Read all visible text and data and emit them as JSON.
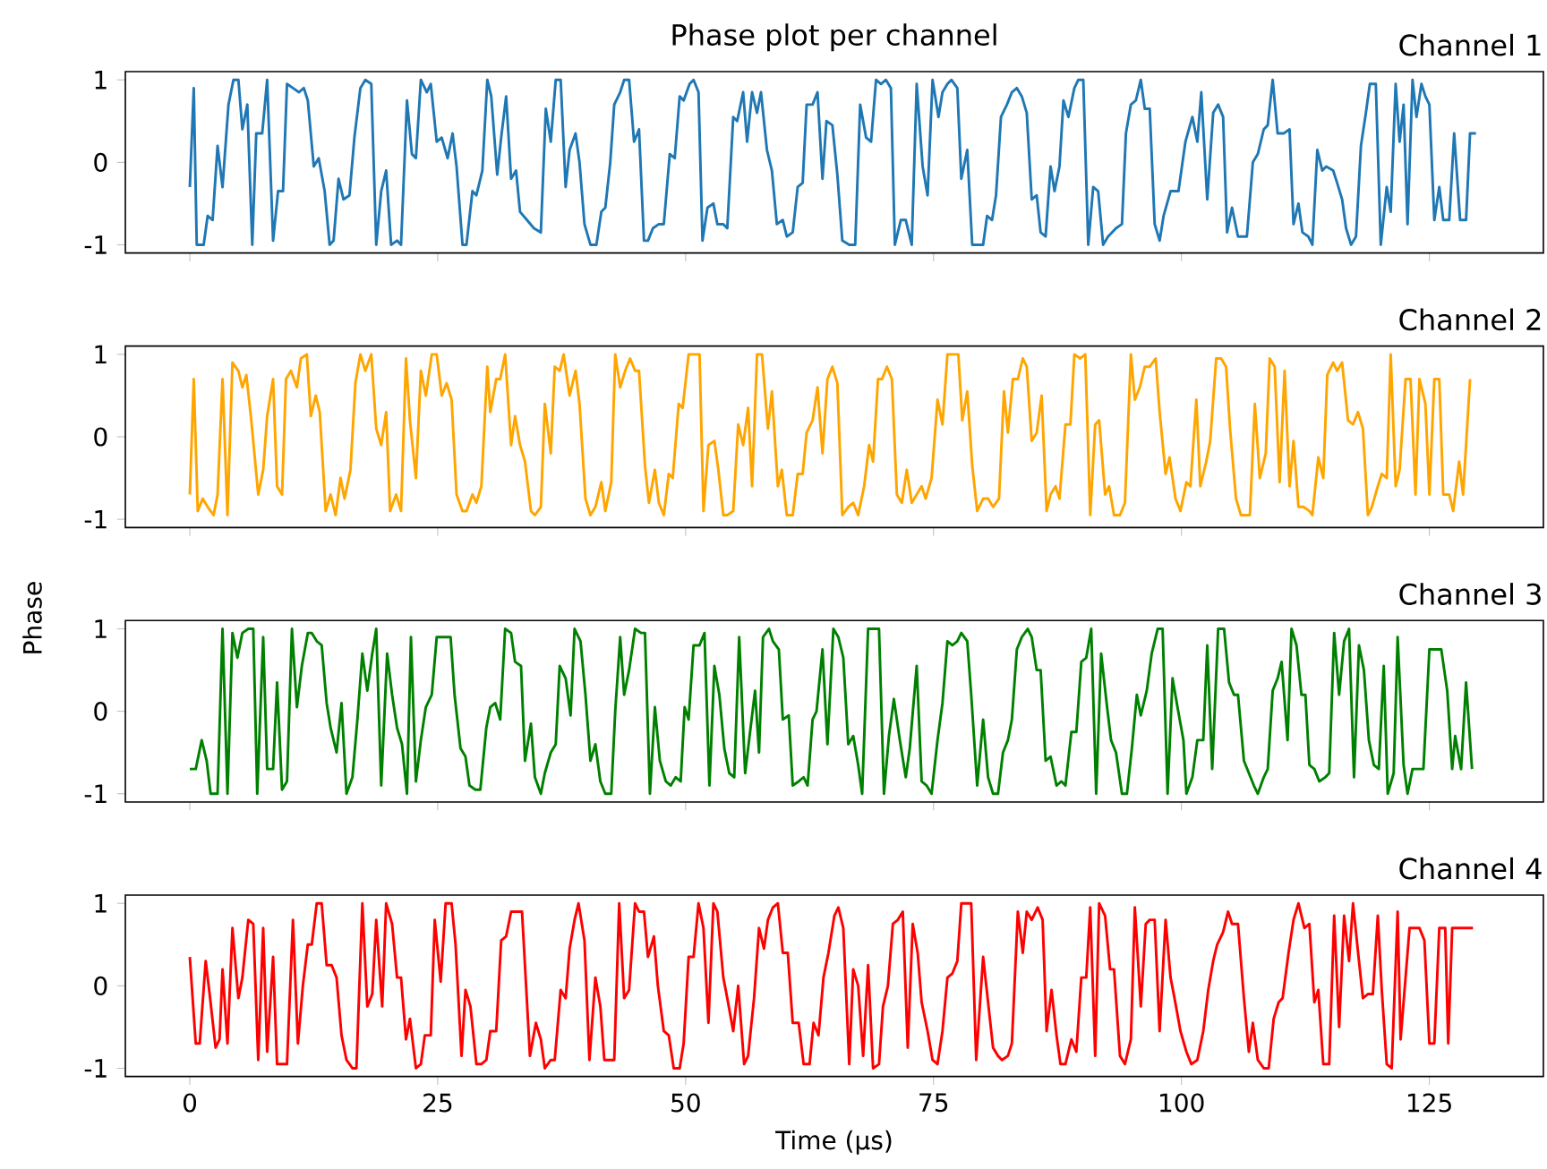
{
  "chart_data": [
    {
      "type": "line",
      "title": "Phase plot per channel",
      "subtitle": "Channel 1",
      "xlim": [
        -6.5,
        136.5
      ],
      "ylim": [
        -1.1,
        1.1
      ],
      "xticks": [
        0,
        25,
        50,
        75,
        100,
        125
      ],
      "yticks": [
        -1,
        0,
        1
      ],
      "tick_labels": "y",
      "series": [
        {
          "color": "#1f77b4",
          "x": [
            0,
            0.4,
            0.7,
            1.4,
            1.8,
            2.3,
            2.8,
            3.3,
            3.9,
            4.4,
            4.9,
            5.3,
            5.8,
            6.3,
            6.7,
            7.3,
            7.8,
            8.4,
            8.9,
            9.4,
            9.8,
            10.4,
            11,
            11.5,
            11.9,
            12.5,
            13,
            13.6,
            14.1,
            14.5,
            15,
            15.5,
            16.1,
            16.6,
            17.2,
            17.7,
            18.3,
            18.8,
            19.3,
            19.8,
            20.3,
            20.9,
            21.3,
            21.9,
            22.4,
            22.8,
            23.3,
            23.9,
            24.3,
            24.9,
            25.4,
            26,
            26.5,
            26.9,
            27.5,
            27.9,
            28.5,
            28.9,
            29.5,
            30,
            30.4,
            31,
            31.4,
            31.9,
            32.4,
            32.9,
            33.3,
            34,
            34.7,
            35.4,
            35.9,
            36.4,
            36.9,
            37.4,
            37.9,
            38.3,
            38.9,
            39.3,
            39.8,
            40.4,
            41,
            41.5,
            41.9,
            42.4,
            42.8,
            43.4,
            43.8,
            44.3,
            44.8,
            45.3,
            45.8,
            46.2,
            46.7,
            47.3,
            47.8,
            48.4,
            48.9,
            49.4,
            49.8,
            50.4,
            50.8,
            51.3,
            51.7,
            52.2,
            52.8,
            53.2,
            53.8,
            54.2,
            54.8,
            55.2,
            55.8,
            56.2,
            56.7,
            57.2,
            57.6,
            58.2,
            58.7,
            59.2,
            59.8,
            60.2,
            60.8,
            61.3,
            61.8,
            62.2,
            62.8,
            63.3,
            63.8,
            64.2,
            64.8,
            65.3,
            65.8,
            66.5,
            67.1,
            67.6,
            68.2,
            68.7,
            69.2,
            69.7,
            70.2,
            70.7,
            71.1,
            71.7,
            72.2,
            72.8,
            73.3,
            73.9,
            74.4,
            74.9,
            75.5,
            75.9,
            76.4,
            76.8,
            77.4,
            77.8,
            78.4,
            78.9,
            79.5,
            80,
            80.4,
            80.9,
            81.3,
            81.8,
            82.4,
            82.9,
            83.4,
            83.9,
            84.4,
            84.9,
            85.4,
            85.8,
            86.3,
            86.8,
            87.2,
            87.7,
            88.1,
            88.6,
            89.2,
            89.6,
            90.1,
            90.6,
            91.1,
            91.6,
            92.1,
            92.6,
            93.4,
            94,
            94.4,
            94.9,
            95.4,
            95.9,
            96.3,
            96.8,
            97.3,
            97.8,
            98.2,
            98.9,
            99.3,
            99.7,
            100.4,
            101.1,
            101.6,
            102,
            102.6,
            103.2,
            103.7,
            104.2,
            104.6,
            105.1,
            105.7,
            106.2,
            106.6,
            107.2,
            107.7,
            108.3,
            108.7,
            109.2,
            109.7,
            110.3,
            110.9,
            111.3,
            111.8,
            112.2,
            112.8,
            113.2,
            113.7,
            114.2,
            114.6,
            115.3,
            115.7,
            116.2,
            116.6,
            117.1,
            117.6,
            118.1,
            118.6,
            119,
            119.6,
            120.1,
            120.7,
            121.1,
            121.6,
            122,
            122.4,
            122.8,
            123.3,
            123.7,
            124.2,
            124.6,
            125,
            125.5,
            126,
            126.4,
            127,
            127.5,
            128.1,
            128.7,
            129.1,
            129.7
          ],
          "values": [
            -0.3,
            0.9,
            -1,
            -1,
            -0.65,
            -0.7,
            0.2,
            -0.3,
            0.7,
            1,
            1,
            0.4,
            0.7,
            -1,
            0.35,
            0.35,
            1,
            -0.95,
            -0.35,
            -0.35,
            0.95,
            0.9,
            0.85,
            0.9,
            0.75,
            -0.05,
            0.05,
            -0.35,
            -1,
            -0.95,
            -0.2,
            -0.45,
            -0.4,
            0.3,
            0.9,
            1,
            0.95,
            -1,
            -0.35,
            -0.1,
            -1,
            -0.95,
            -1,
            0.75,
            0.1,
            0.05,
            1,
            0.85,
            0.95,
            0.25,
            0.3,
            0.05,
            0.35,
            -0.05,
            -1,
            -1,
            -0.35,
            -0.4,
            -0.1,
            1,
            0.8,
            -0.15,
            0.3,
            0.8,
            -0.2,
            -0.1,
            -0.6,
            -0.7,
            -0.8,
            -0.85,
            0.65,
            0.25,
            1,
            1,
            -0.3,
            0.15,
            0.35,
            0,
            -0.75,
            -1,
            -1,
            -0.6,
            -0.55,
            0,
            0.7,
            0.85,
            1,
            1,
            0.25,
            0.4,
            -0.95,
            -0.95,
            -0.8,
            -0.75,
            -0.75,
            0.1,
            0.05,
            0.8,
            0.75,
            0.95,
            1,
            0.85,
            -0.95,
            -0.55,
            -0.5,
            -0.75,
            -0.75,
            -0.8,
            0.55,
            0.5,
            0.85,
            0.25,
            0.85,
            0.6,
            0.85,
            0.15,
            -0.1,
            -0.75,
            -0.7,
            -0.9,
            -0.85,
            -0.3,
            -0.25,
            0.7,
            0.7,
            0.85,
            -0.2,
            0.5,
            0.45,
            -0.15,
            -0.95,
            -1,
            -1,
            0.7,
            0.3,
            0.25,
            1,
            0.95,
            1,
            0.9,
            -1,
            -0.7,
            -0.7,
            -1,
            0.95,
            -0.05,
            -0.4,
            1,
            0.55,
            0.85,
            0.95,
            1,
            0.9,
            -0.2,
            0.15,
            -1,
            -1,
            -1,
            -0.65,
            -0.7,
            -0.4,
            0.55,
            0.7,
            0.85,
            0.9,
            0.8,
            0.6,
            -0.45,
            -0.4,
            -0.85,
            -0.9,
            -0.05,
            -0.35,
            -0.05,
            0.75,
            0.55,
            0.9,
            1,
            1,
            -1,
            -0.3,
            -0.35,
            -1,
            -0.9,
            -0.8,
            -0.75,
            0.35,
            0.7,
            0.75,
            1,
            0.65,
            0.65,
            -0.75,
            -0.95,
            -0.65,
            -0.35,
            -0.35,
            -0.35,
            0.25,
            0.55,
            0.25,
            0.85,
            -0.45,
            0.6,
            0.7,
            0.55,
            -0.85,
            -0.55,
            -0.9,
            -0.9,
            -0.9,
            0,
            0.1,
            0.4,
            0.45,
            1,
            0.35,
            0.35,
            0.4,
            -0.75,
            -0.5,
            -0.85,
            -0.9,
            -1,
            0.15,
            -0.1,
            -0.05,
            -0.1,
            -0.25,
            -0.45,
            -0.8,
            -1,
            -0.9,
            0.2,
            0.6,
            0.95,
            0.95,
            -1,
            -0.3,
            -0.6,
            0.95,
            0.25,
            0.7,
            -0.75,
            1,
            0.55,
            0.95,
            0.8,
            0.7,
            -0.7,
            -0.3,
            -0.7,
            -0.7,
            0.35,
            -0.7,
            -0.7,
            0.35,
            0.35
          ]
        }
      ]
    },
    {
      "type": "line",
      "subtitle": "Channel 2",
      "ylabel": "Phase",
      "xlim": [
        -6.5,
        136.5
      ],
      "ylim": [
        -1.1,
        1.1
      ],
      "xticks": [
        0,
        25,
        50,
        75,
        100,
        125
      ],
      "yticks": [
        -1,
        0,
        1
      ],
      "tick_labels": "y",
      "series": [
        {
          "color": "#ffa500",
          "x": [
            0,
            0.4,
            0.8,
            1.3,
            1.8,
            2.4,
            2.8,
            3.3,
            3.8,
            4.3,
            4.9,
            5.3,
            5.7,
            6.2,
            6.9,
            7.4,
            7.8,
            8.4,
            8.8,
            9.3,
            9.7,
            10.2,
            10.8,
            11.2,
            11.8,
            12.2,
            12.7,
            13.1,
            13.7,
            14.2,
            14.7,
            15.2,
            15.6,
            16.2,
            16.7,
            17.2,
            17.7,
            18.3,
            18.8,
            19.3,
            19.8,
            20.2,
            20.8,
            21.3,
            21.8,
            22.2,
            22.8,
            23.3,
            23.8,
            24.4,
            24.9,
            25.4,
            25.9,
            26.4,
            26.9,
            27.5,
            27.9,
            28.5,
            28.9,
            29.4,
            30,
            30.3,
            30.9,
            31.3,
            31.8,
            32.4,
            32.8,
            33.3,
            33.8,
            34.4,
            34.8,
            35.4,
            35.8,
            36.4,
            36.8,
            37.3,
            37.7,
            38.3,
            38.9,
            39.3,
            39.9,
            40.4,
            40.9,
            41.5,
            41.9,
            42.5,
            42.9,
            43.4,
            43.9,
            44.4,
            44.9,
            45.3,
            45.9,
            46.3,
            46.9,
            47.3,
            47.8,
            48.3,
            48.7,
            49.3,
            49.7,
            50.3,
            50.8,
            51.4,
            51.8,
            52.3,
            52.9,
            53.3,
            53.8,
            54.2,
            54.8,
            55.3,
            55.8,
            56.3,
            56.7,
            57.2,
            57.7,
            58.3,
            58.7,
            59.3,
            59.7,
            60.2,
            60.8,
            61.3,
            61.8,
            62.2,
            62.8,
            63.3,
            63.8,
            64.3,
            64.8,
            65.3,
            65.8,
            66.4,
            66.9,
            67.4,
            68,
            68.5,
            68.9,
            69.4,
            69.8,
            70.3,
            70.8,
            71.3,
            71.8,
            72.3,
            72.8,
            73.3,
            73.8,
            74.2,
            74.8,
            75.4,
            75.9,
            76.4,
            76.9,
            77.5,
            77.9,
            78.4,
            78.9,
            79.4,
            80,
            80.5,
            81,
            81.6,
            82.1,
            82.5,
            83,
            83.5,
            84,
            84.4,
            84.9,
            85.4,
            85.9,
            86.4,
            86.8,
            87.3,
            87.7,
            88.3,
            88.8,
            89.2,
            89.8,
            90.3,
            90.8,
            91.3,
            91.7,
            92.3,
            92.7,
            93.2,
            93.8,
            94.3,
            94.9,
            95.3,
            95.8,
            96.3,
            96.8,
            97.4,
            97.8,
            98.4,
            98.8,
            99.4,
            99.9,
            100.5,
            100.9,
            101.5,
            101.9,
            102.5,
            102.9,
            103.5,
            104,
            104.5,
            104.9,
            105.5,
            106,
            106.5,
            106.9,
            107.4,
            107.9,
            108.5,
            108.9,
            109.4,
            109.9,
            110.4,
            110.9,
            111.3,
            111.8,
            112.3,
            112.9,
            113.2,
            113.8,
            114.3,
            114.7,
            115.3,
            115.7,
            116.2,
            116.8,
            117.3,
            117.8,
            118.3,
            118.8,
            119.2,
            119.8,
            120.2,
            120.7,
            121.1,
            121.6,
            122,
            122.6,
            123.1,
            123.6,
            124,
            124.6,
            125,
            125.5,
            126,
            126.4,
            127,
            127.4,
            128,
            128.4,
            129.1
          ],
          "values": [
            -0.7,
            0.7,
            -0.9,
            -0.75,
            -0.85,
            -0.95,
            -0.7,
            0.7,
            -0.95,
            0.9,
            0.8,
            0.6,
            0.75,
            0.2,
            -0.7,
            -0.4,
            0.25,
            0.7,
            -0.6,
            -0.7,
            0.7,
            0.8,
            0.6,
            0.95,
            1,
            0.25,
            0.5,
            0.3,
            -0.9,
            -0.7,
            -0.95,
            -0.5,
            -0.75,
            -0.4,
            0.65,
            1,
            0.8,
            1,
            0.1,
            -0.1,
            0.3,
            -0.9,
            -0.7,
            -0.9,
            0.95,
            0.2,
            -0.5,
            0.8,
            0.5,
            1,
            1,
            0.5,
            0.65,
            0.45,
            -0.7,
            -0.9,
            -0.9,
            -0.7,
            -0.8,
            -0.6,
            0.85,
            0.3,
            0.7,
            0.7,
            1,
            -0.1,
            0.25,
            -0.1,
            -0.3,
            -0.9,
            -0.95,
            -0.85,
            0.4,
            -0.2,
            0.85,
            0.8,
            1,
            0.5,
            0.8,
            0.4,
            -0.75,
            -0.95,
            -0.85,
            -0.55,
            -0.9,
            -0.55,
            1,
            0.6,
            0.8,
            0.95,
            0.8,
            0.8,
            -0.35,
            -0.8,
            -0.4,
            -0.8,
            -0.95,
            -0.45,
            -0.5,
            0.4,
            0.35,
            1,
            1,
            1,
            -0.9,
            -0.1,
            -0.05,
            -0.4,
            -0.95,
            -0.95,
            -0.9,
            0.15,
            -0.1,
            0.35,
            -0.6,
            1,
            1,
            0.1,
            0.55,
            -0.6,
            -0.4,
            -0.95,
            -0.95,
            -0.45,
            -0.45,
            0.05,
            0.2,
            0.6,
            -0.2,
            0.7,
            0.85,
            0.65,
            -0.95,
            -0.85,
            -0.8,
            -0.95,
            -0.6,
            -0.1,
            -0.3,
            0.7,
            0.7,
            0.85,
            0.7,
            -0.7,
            -0.8,
            -0.4,
            -0.8,
            -0.7,
            -0.6,
            -0.75,
            -0.5,
            0.45,
            0.15,
            1,
            1,
            1,
            0.2,
            0.55,
            -0.35,
            -0.9,
            -0.75,
            -0.75,
            -0.85,
            -0.75,
            0.55,
            0.05,
            0.7,
            0.7,
            0.95,
            0.85,
            -0.05,
            0.05,
            0.5,
            -0.9,
            -0.7,
            -0.6,
            -0.75,
            0.15,
            0.15,
            1,
            0.95,
            1,
            -0.95,
            0.15,
            0.2,
            -0.7,
            -0.6,
            -0.95,
            -0.95,
            -0.8,
            1,
            0.45,
            0.6,
            0.85,
            0.85,
            0.95,
            0.3,
            -0.45,
            -0.25,
            -0.75,
            -0.9,
            -0.55,
            -0.6,
            0.45,
            -0.6,
            -0.3,
            -0.05,
            0.95,
            0.95,
            0.85,
            0.1,
            -0.75,
            -0.95,
            -0.95,
            -0.95,
            0.4,
            -0.5,
            -0.2,
            0.95,
            0.85,
            -0.55,
            0.8,
            -0.6,
            -0.05,
            -0.85,
            -0.85,
            -0.9,
            -0.95,
            -0.25,
            -0.5,
            0.75,
            0.9,
            0.8,
            0.9,
            0.2,
            0.15,
            0.3,
            0.1,
            -0.95,
            -0.85,
            -0.6,
            -0.45,
            -0.5,
            1,
            -0.6,
            -0.4,
            0.7,
            0.7,
            -0.7,
            0.7,
            0.4,
            -0.7,
            0.7,
            0.7,
            -0.7,
            -0.7,
            -0.9,
            -0.3,
            -0.7,
            0.7
          ]
        }
      ]
    },
    {
      "type": "line",
      "subtitle": "Channel 3",
      "xlim": [
        -6.5,
        136.5
      ],
      "ylim": [
        -1.1,
        1.1
      ],
      "xticks": [
        0,
        25,
        50,
        75,
        100,
        125
      ],
      "yticks": [
        -1,
        0,
        1
      ],
      "tick_labels": "y",
      "series": [
        {
          "color": "#008000",
          "x": [
            0,
            0.6,
            1.2,
            1.7,
            2.1,
            2.8,
            3.3,
            3.8,
            4.3,
            4.8,
            5.3,
            5.9,
            6.4,
            6.8,
            7.4,
            7.8,
            8.4,
            8.8,
            9.3,
            9.8,
            10.3,
            10.8,
            11.3,
            11.9,
            12.3,
            12.8,
            13.3,
            13.8,
            14.2,
            14.8,
            15.3,
            15.8,
            16.4,
            16.9,
            17.4,
            17.9,
            18.4,
            18.8,
            19.3,
            19.9,
            20.4,
            20.9,
            21.4,
            21.9,
            22.3,
            22.8,
            23.3,
            23.8,
            24.4,
            24.9,
            25.4,
            25.8,
            26.3,
            26.7,
            27.3,
            27.8,
            28.2,
            28.8,
            29.3,
            29.9,
            30.3,
            30.8,
            31.3,
            31.8,
            32.4,
            32.8,
            33.4,
            33.8,
            34.4,
            34.8,
            35.4,
            35.8,
            36.4,
            36.9,
            37.3,
            37.9,
            38.4,
            38.8,
            39.4,
            39.9,
            40.4,
            40.9,
            41.4,
            41.9,
            42.5,
            42.9,
            43.4,
            43.8,
            44.3,
            44.9,
            45.5,
            45.9,
            46.4,
            46.9,
            47.4,
            48,
            48.5,
            49,
            49.5,
            49.9,
            50.3,
            50.8,
            51.4,
            51.9,
            52.4,
            52.9,
            53.4,
            53.9,
            54.4,
            54.9,
            55.4,
            56,
            56.4,
            57,
            57.4,
            57.8,
            58.4,
            58.8,
            59.4,
            59.8,
            60.4,
            60.8,
            61.4,
            61.9,
            62.3,
            62.8,
            63.2,
            63.8,
            64.3,
            64.9,
            65.4,
            65.9,
            66.4,
            66.9,
            67.4,
            67.8,
            68.4,
            68.9,
            69.5,
            70,
            70.5,
            71,
            71.6,
            72.2,
            72.6,
            73.3,
            73.8,
            74.3,
            74.8,
            75.4,
            75.9,
            76.4,
            76.9,
            77.4,
            77.8,
            78.4,
            78.8,
            79.4,
            80,
            80.5,
            81,
            81.5,
            82,
            82.5,
            82.9,
            83.4,
            83.9,
            84.5,
            84.9,
            85.4,
            85.8,
            86.3,
            86.8,
            87.4,
            87.9,
            88.3,
            88.9,
            89.4,
            89.9,
            90.4,
            90.9,
            91.4,
            91.9,
            92.5,
            92.9,
            93.4,
            94,
            94.5,
            95,
            95.5,
            95.9,
            96.5,
            97,
            97.6,
            98.1,
            98.6,
            99.1,
            99.6,
            100.2,
            100.5,
            101.1,
            101.6,
            102.2,
            102.6,
            103.1,
            103.7,
            104.3,
            104.8,
            105.3,
            105.7,
            106.3,
            106.8,
            107.3,
            107.7,
            108.3,
            108.7,
            109.2,
            109.7,
            110.1,
            110.7,
            111.1,
            111.6,
            112.1,
            112.5,
            112.9,
            113.4,
            113.9,
            114.5,
            114.9,
            115.4,
            115.9,
            116.4,
            116.9,
            117.4,
            117.9,
            118.4,
            118.9,
            119.4,
            119.9,
            120.4,
            120.8,
            121.4,
            121.8,
            122.4,
            122.8,
            123.3,
            123.9,
            124.4,
            125,
            125.5,
            126.2,
            126.8,
            127.3,
            127.6,
            128.2,
            128.7,
            129.3
          ],
          "values": [
            -0.7,
            -0.7,
            -0.35,
            -0.6,
            -1,
            -1,
            1,
            -1,
            0.95,
            0.65,
            0.95,
            1,
            1,
            -1,
            0.9,
            -0.7,
            -0.7,
            0.35,
            -0.95,
            -0.85,
            1,
            0.05,
            0.55,
            0.95,
            0.95,
            0.85,
            0.8,
            0.1,
            -0.2,
            -0.5,
            0.1,
            -1,
            -0.8,
            -0.1,
            0.7,
            0.25,
            0.7,
            1,
            -0.9,
            0.7,
            0.2,
            -0.2,
            -0.4,
            -1,
            0.9,
            -0.85,
            -0.35,
            0.05,
            0.2,
            0.9,
            0.9,
            0.9,
            0.9,
            0.2,
            -0.45,
            -0.55,
            -0.9,
            -0.95,
            -0.95,
            -0.2,
            0.05,
            0.1,
            -0.1,
            1,
            0.95,
            0.6,
            0.55,
            -0.6,
            -0.15,
            -0.8,
            -1,
            -0.75,
            -0.5,
            -0.4,
            0.55,
            0.4,
            -0.05,
            1,
            0.85,
            0.2,
            -0.6,
            -0.4,
            -0.85,
            -1,
            -1,
            0,
            0.9,
            0.2,
            0.5,
            1,
            0.95,
            0.95,
            -1,
            0.05,
            -0.6,
            -0.85,
            -0.9,
            -0.8,
            -0.85,
            0.05,
            -0.1,
            0.8,
            0.8,
            0.95,
            -0.9,
            0.55,
            0.2,
            -0.45,
            -0.75,
            -0.8,
            0.9,
            -0.75,
            -0.35,
            0.25,
            -0.5,
            0.9,
            1,
            0.85,
            0.75,
            -0.1,
            -0.05,
            -0.9,
            -0.85,
            -0.8,
            -0.9,
            -0.1,
            0,
            0.75,
            -0.4,
            1,
            0.9,
            0.65,
            -0.4,
            -0.3,
            -0.65,
            -1,
            1,
            1,
            1,
            -1,
            -0.3,
            0.15,
            -0.35,
            -0.8,
            -0.45,
            0.55,
            -0.85,
            -0.9,
            -1,
            -0.35,
            0.1,
            0.85,
            0.8,
            0.85,
            0.95,
            0.85,
            0.2,
            -0.9,
            -0.1,
            -0.8,
            -1,
            -1,
            -0.5,
            -0.35,
            -0.1,
            0.75,
            0.9,
            1,
            0.9,
            0.5,
            0.5,
            -0.6,
            -0.55,
            -0.9,
            -0.85,
            -0.9,
            -0.25,
            -0.25,
            0.6,
            0.65,
            1,
            -1,
            0.7,
            0.05,
            -0.35,
            -0.5,
            -1,
            -1,
            -0.45,
            0.2,
            -0.05,
            0.25,
            0.7,
            1,
            1,
            -1,
            0.4,
            0.05,
            -0.35,
            -1,
            -0.8,
            -0.35,
            -0.35,
            0.8,
            -0.7,
            1,
            1,
            0.35,
            0.2,
            0.2,
            -0.6,
            -0.75,
            -0.9,
            -1,
            -0.8,
            -0.7,
            0.25,
            0.4,
            0.6,
            -0.35,
            1,
            0.8,
            0.2,
            0.2,
            -0.65,
            -0.7,
            -0.85,
            -0.8,
            -0.75,
            0.95,
            0.2,
            0.85,
            1,
            -0.8,
            0.8,
            0.5,
            -0.35,
            -0.65,
            -0.7,
            0.55,
            -1,
            -0.75,
            0.9,
            -0.65,
            -1,
            -0.7,
            -0.7,
            -0.7,
            0.75,
            0.75,
            0.75,
            0.25,
            -0.7,
            -0.3,
            -0.7,
            0.35,
            -0.7
          ]
        }
      ]
    },
    {
      "type": "line",
      "subtitle": "Channel 4",
      "xlabel": "Time (µs)",
      "xlim": [
        -6.5,
        136.5
      ],
      "ylim": [
        -1.1,
        1.1
      ],
      "xticks": [
        0,
        25,
        50,
        75,
        100,
        125
      ],
      "yticks": [
        -1,
        0,
        1
      ],
      "series": [
        {
          "color": "#ff0000",
          "x": [
            0,
            0.6,
            1,
            1.6,
            2,
            2.6,
            3,
            3.3,
            3.8,
            4.3,
            4.9,
            5.3,
            5.9,
            6.4,
            6.9,
            7.4,
            7.8,
            8.4,
            8.8,
            9.4,
            9.8,
            10.4,
            10.9,
            11.4,
            11.9,
            12.3,
            12.8,
            13.3,
            13.8,
            14.3,
            14.8,
            15.3,
            15.8,
            16.4,
            16.8,
            17.4,
            17.9,
            18.4,
            18.8,
            19.4,
            19.8,
            20.4,
            20.9,
            21.3,
            21.8,
            22.2,
            22.8,
            23.3,
            23.7,
            24.3,
            24.7,
            25.3,
            25.8,
            26.4,
            26.8,
            27.4,
            27.8,
            28.3,
            28.9,
            29.4,
            29.9,
            30.3,
            30.9,
            31.4,
            31.9,
            32.4,
            33,
            33.5,
            34.3,
            34.9,
            35.4,
            35.8,
            36.4,
            36.8,
            37.4,
            37.9,
            38.3,
            38.8,
            39.2,
            39.8,
            40.3,
            40.9,
            41.4,
            41.8,
            42.3,
            42.8,
            43.3,
            43.8,
            44.3,
            44.9,
            45.3,
            45.8,
            46.2,
            46.8,
            47.2,
            47.8,
            48.3,
            48.8,
            49.4,
            49.8,
            50.3,
            50.8,
            51.3,
            51.8,
            52.3,
            52.8,
            53.2,
            53.8,
            54.2,
            54.8,
            55.3,
            55.9,
            56.3,
            56.9,
            57.4,
            57.9,
            58.3,
            58.8,
            59.3,
            59.8,
            60.3,
            60.8,
            61.4,
            61.9,
            62.5,
            62.9,
            63.4,
            63.9,
            64.4,
            65,
            65.4,
            65.9,
            66.5,
            66.9,
            67.4,
            67.9,
            68.4,
            68.9,
            69.5,
            69.9,
            70.4,
            70.9,
            71.4,
            71.9,
            72.4,
            72.9,
            73.4,
            73.8,
            74.4,
            74.9,
            75.4,
            75.9,
            76.4,
            76.9,
            77.4,
            77.8,
            78.4,
            78.8,
            79.3,
            80,
            80.5,
            81,
            81.5,
            81.9,
            82.5,
            82.9,
            83.5,
            84,
            84.4,
            84.9,
            85.5,
            86,
            86.4,
            86.9,
            87.4,
            87.8,
            88.3,
            88.9,
            89.4,
            89.9,
            90.4,
            90.8,
            91.3,
            91.7,
            92.3,
            92.8,
            93.2,
            93.8,
            94.3,
            94.9,
            95.3,
            95.9,
            96.4,
            96.8,
            97.3,
            97.8,
            98.4,
            98.9,
            99.3,
            99.9,
            100.5,
            101,
            101.6,
            102.2,
            102.7,
            103.2,
            103.6,
            104.2,
            104.7,
            105.1,
            105.7,
            106.3,
            106.8,
            107.2,
            107.7,
            108.3,
            108.8,
            109.3,
            109.8,
            110.2,
            110.8,
            111.3,
            111.8,
            112.4,
            112.9,
            113.4,
            113.8,
            114.3,
            114.9,
            115.4,
            115.9,
            116.4,
            116.9,
            117.3,
            117.9,
            118.3,
            118.8,
            119.3,
            119.8,
            120.2,
            120.7,
            121.2,
            121.8,
            122.1,
            122.6,
            123,
            123.5,
            124,
            124.5,
            125,
            125.5,
            126,
            126.6,
            126.9,
            127.3,
            127.9,
            128.5,
            129.4
          ],
          "values": [
            0.35,
            -0.7,
            -0.7,
            0.3,
            -0.1,
            -0.75,
            -0.65,
            0.2,
            -0.7,
            0.7,
            -0.15,
            0.1,
            0.8,
            0.75,
            -0.9,
            0.7,
            -0.8,
            0.35,
            -0.95,
            -0.95,
            -0.95,
            0.8,
            -0.7,
            0,
            0.5,
            0.5,
            1,
            1,
            0.25,
            0.25,
            0.1,
            -0.6,
            -0.9,
            -1,
            -1,
            1,
            -0.25,
            -0.1,
            0.8,
            -0.25,
            1,
            0.75,
            0.1,
            0.1,
            -0.65,
            -0.4,
            -1,
            -0.95,
            -0.6,
            -0.6,
            0.8,
            0.05,
            1,
            1,
            0.5,
            -0.85,
            -0.05,
            -0.25,
            -0.95,
            -0.95,
            -0.9,
            -0.55,
            -0.55,
            0.55,
            0.6,
            0.9,
            0.9,
            0.9,
            -0.85,
            -0.45,
            -0.65,
            -1,
            -0.9,
            -0.9,
            -0.05,
            -0.15,
            0.45,
            0.8,
            1,
            0.55,
            -0.9,
            0.1,
            -0.25,
            -0.9,
            -0.9,
            -0.9,
            1,
            -0.15,
            -0.05,
            1,
            0.9,
            0.9,
            0.35,
            0.6,
            0,
            -0.55,
            -0.6,
            -1,
            -1,
            -0.7,
            0.35,
            0.35,
            1,
            0.7,
            -0.45,
            1,
            0.9,
            0.1,
            -0.15,
            -0.55,
            0,
            -0.95,
            -0.85,
            -0.15,
            0.7,
            0.45,
            0.8,
            0.95,
            1,
            0.4,
            0.4,
            -0.45,
            -0.45,
            -0.95,
            -0.95,
            -0.45,
            -0.6,
            0.1,
            0.4,
            0.85,
            0.95,
            0.7,
            -0.95,
            0.2,
            0,
            -0.85,
            0.25,
            -1,
            -0.95,
            -0.25,
            0,
            0.75,
            0.8,
            0.9,
            -0.75,
            0.75,
            0.4,
            -0.2,
            -0.55,
            -0.9,
            -0.95,
            -0.55,
            0.1,
            0.15,
            0.3,
            1,
            1,
            1,
            -0.9,
            0.35,
            -0.2,
            -0.75,
            -0.85,
            -0.9,
            -0.85,
            -0.7,
            0.9,
            0.4,
            0.9,
            0.8,
            0.95,
            0.8,
            -0.55,
            -0.05,
            -0.6,
            -0.95,
            -0.95,
            -0.65,
            -0.8,
            0.1,
            0.1,
            0.95,
            -0.85,
            1,
            0.85,
            0.2,
            0.2,
            -0.85,
            -0.95,
            -0.65,
            0.95,
            -0.25,
            0.75,
            0.8,
            0.8,
            -0.55,
            0.8,
            0.1,
            -0.15,
            -0.55,
            -0.8,
            -0.95,
            -0.9,
            -0.55,
            -0.05,
            0.3,
            0.5,
            0.65,
            0.9,
            0.75,
            0.75,
            -0.15,
            -0.8,
            -0.45,
            -0.9,
            -1,
            -1,
            -0.4,
            -0.2,
            -0.15,
            0.4,
            0.8,
            1,
            0.7,
            0.75,
            -0.2,
            -0.05,
            -0.95,
            -0.95,
            0.85,
            -0.5,
            0.85,
            0.3,
            1,
            0.3,
            -0.15,
            -0.1,
            -0.1,
            0.85,
            -0.05,
            -0.95,
            -1,
            0.9,
            -0.65,
            0.1,
            0.7,
            0.7,
            0.7,
            0.55,
            -0.7,
            -0.7,
            0.7,
            0.7,
            -0.7,
            0.7,
            0.7,
            0.7,
            0.7
          ]
        }
      ]
    }
  ]
}
